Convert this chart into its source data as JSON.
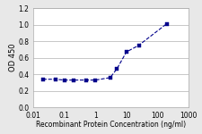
{
  "x": [
    0.02,
    0.05,
    0.1,
    0.2,
    0.5,
    1,
    3,
    5,
    10,
    25,
    200
  ],
  "y": [
    0.34,
    0.34,
    0.33,
    0.33,
    0.33,
    0.33,
    0.36,
    0.47,
    0.67,
    0.75,
    1.01
  ],
  "line_color": "#00008B",
  "marker": "s",
  "marker_size": 2.5,
  "linestyle": "--",
  "ylabel": "OD 450",
  "xlabel": "Recombinant Protein Concentration (ng/ml)",
  "ylim": [
    0.0,
    1.2
  ],
  "yticks": [
    0.0,
    0.2,
    0.4,
    0.6,
    0.8,
    1.0,
    1.2
  ],
  "ytick_labels": [
    "0.0",
    "0.2",
    "0.4",
    "0.6",
    "0.8",
    "1.0",
    "1.2"
  ],
  "xlim_log": [
    0.01,
    1000
  ],
  "xtick_vals": [
    0.01,
    0.1,
    1,
    10,
    100,
    1000
  ],
  "xtick_labels": [
    "0.01",
    "0.1",
    "1",
    "10",
    "100",
    "1000"
  ],
  "bg_color": "#e8e8e8",
  "plot_bg": "#ffffff",
  "linewidth": 0.8,
  "grid_color": "#b0b0b0",
  "ylabel_fontsize": 6,
  "xlabel_fontsize": 5.5,
  "tick_fontsize": 5.5
}
